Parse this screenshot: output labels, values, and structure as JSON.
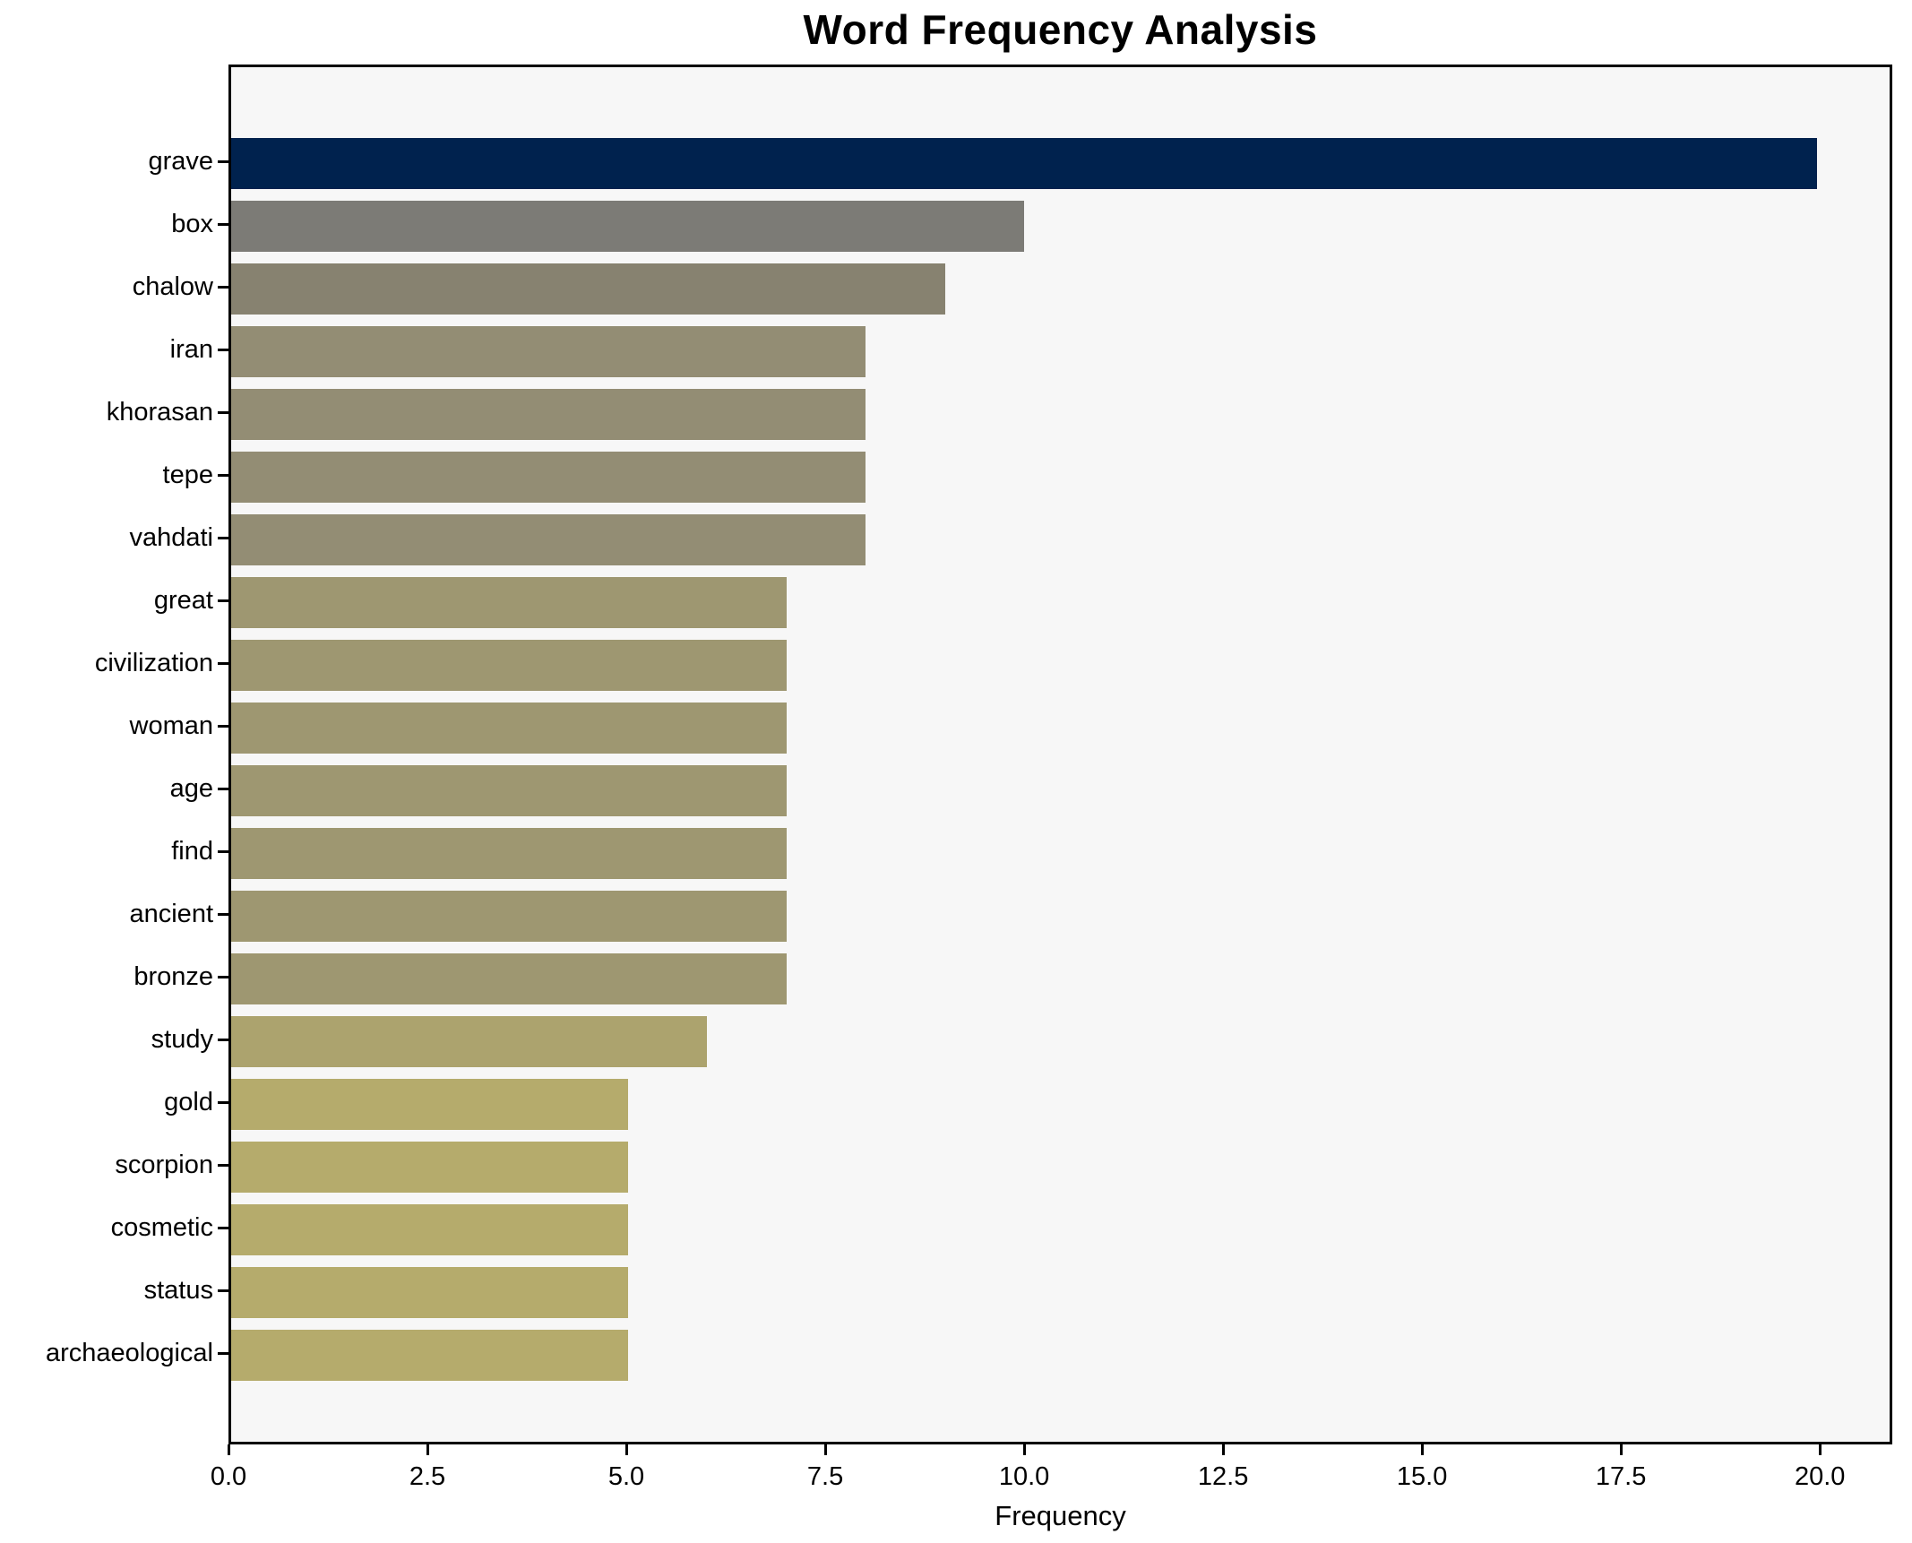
{
  "title": "Word Frequency Analysis",
  "chart_data": {
    "type": "bar",
    "orientation": "horizontal",
    "title": "Word Frequency Analysis",
    "xlabel": "Frequency",
    "ylabel": "",
    "categories": [
      "grave",
      "box",
      "chalow",
      "iran",
      "khorasan",
      "tepe",
      "vahdati",
      "great",
      "civilization",
      "woman",
      "age",
      "find",
      "ancient",
      "bronze",
      "study",
      "gold",
      "scorpion",
      "cosmetic",
      "status",
      "archaeological"
    ],
    "values": [
      20,
      10,
      9,
      8,
      8,
      8,
      8,
      7,
      7,
      7,
      7,
      7,
      7,
      7,
      6,
      5,
      5,
      5,
      5,
      5
    ],
    "bar_colors": [
      "#00224e",
      "#7c7b76",
      "#878270",
      "#938d74",
      "#938d74",
      "#938d74",
      "#938d74",
      "#9e9771",
      "#9e9771",
      "#9e9771",
      "#9e9771",
      "#9e9771",
      "#9e9771",
      "#9e9771",
      "#aca36e",
      "#b5ab6c",
      "#b5ab6c",
      "#b5ab6c",
      "#b5ab6c",
      "#b5ab6c"
    ],
    "xticks": [
      "0.0",
      "2.5",
      "5.0",
      "7.5",
      "10.0",
      "12.5",
      "15.0",
      "17.5",
      "20.0"
    ],
    "xtick_values": [
      0,
      2.5,
      5,
      7.5,
      10,
      12.5,
      15,
      17.5,
      20
    ],
    "xlim": [
      0,
      20.91
    ],
    "grid": false,
    "legend_visible": false,
    "colormap": "cividis",
    "plot_background": "#f7f7f7",
    "figure_background": "#ffffff",
    "axis_color": "#000000"
  }
}
